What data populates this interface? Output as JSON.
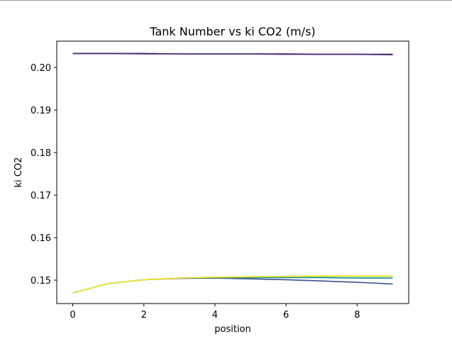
{
  "chart_data": {
    "type": "line",
    "title": "Tank Number vs ki CO2 (m/s)",
    "xlabel": "position",
    "ylabel": "ki CO2",
    "xlim": [
      -0.45,
      9.45
    ],
    "ylim": [
      0.1445,
      0.2062
    ],
    "xticks": [
      0,
      2,
      4,
      6,
      8
    ],
    "yticks": [
      0.15,
      0.16,
      0.17,
      0.18,
      0.19,
      0.2
    ],
    "ytick_labels": [
      "0.15",
      "0.16",
      "0.17",
      "0.18",
      "0.19",
      "0.20"
    ],
    "grid": false,
    "x": [
      0,
      1,
      2,
      3,
      4,
      5,
      6,
      7,
      8,
      9
    ],
    "series": [
      {
        "color": "#440154",
        "values": [
          0.2033,
          0.2033,
          0.2033,
          0.2032,
          0.2032,
          0.2032,
          0.2032,
          0.2031,
          0.2031,
          0.2031
        ]
      },
      {
        "color": "#472c7a",
        "values": [
          0.2033,
          0.2033,
          0.2032,
          0.2032,
          0.2032,
          0.2032,
          0.2031,
          0.2031,
          0.2031,
          0.203
        ]
      },
      {
        "color": "#3b518b",
        "values": [
          0.147,
          0.1492,
          0.1501,
          0.1504,
          0.1505,
          0.1503,
          0.1501,
          0.1498,
          0.1495,
          0.1491
        ]
      },
      {
        "color": "#21908d",
        "values": [
          0.147,
          0.1492,
          0.1501,
          0.1505,
          0.1506,
          0.1506,
          0.1506,
          0.1506,
          0.1505,
          0.1505
        ]
      },
      {
        "color": "#5dc962",
        "values": [
          0.147,
          0.1492,
          0.1501,
          0.1505,
          0.1507,
          0.1508,
          0.1509,
          0.1509,
          0.1509,
          0.1509
        ]
      },
      {
        "color": "#fde725",
        "values": [
          0.147,
          0.1492,
          0.1501,
          0.1505,
          0.1507,
          0.1508,
          0.1509,
          0.151,
          0.151,
          0.151
        ]
      }
    ]
  }
}
